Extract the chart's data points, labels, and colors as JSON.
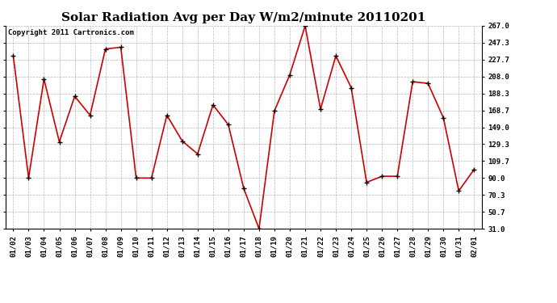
{
  "title": "Solar Radiation Avg per Day W/m2/minute 20110201",
  "copyright": "Copyright 2011 Cartronics.com",
  "x_labels": [
    "01/02",
    "01/03",
    "01/04",
    "01/05",
    "01/06",
    "01/07",
    "01/08",
    "01/09",
    "01/10",
    "01/11",
    "01/12",
    "01/13",
    "01/14",
    "01/15",
    "01/16",
    "01/17",
    "01/18",
    "01/19",
    "01/20",
    "01/21",
    "01/22",
    "01/23",
    "01/24",
    "01/25",
    "01/26",
    "01/27",
    "01/28",
    "01/29",
    "01/30",
    "01/31",
    "02/01"
  ],
  "y_values": [
    232,
    90,
    205,
    132,
    185,
    163,
    240,
    242,
    90,
    90,
    163,
    133,
    118,
    175,
    152,
    78,
    31,
    168,
    210,
    267,
    170,
    232,
    195,
    85,
    92,
    92,
    202,
    200,
    160,
    75,
    100
  ],
  "line_color": "#cc0000",
  "marker_color": "#000000",
  "bg_color": "#ffffff",
  "plot_bg_color": "#ffffff",
  "grid_color": "#999999",
  "y_ticks": [
    31.0,
    50.7,
    70.3,
    90.0,
    109.7,
    129.3,
    149.0,
    168.7,
    188.3,
    208.0,
    227.7,
    247.3,
    267.0
  ],
  "y_min": 31.0,
  "y_max": 267.0,
  "title_fontsize": 11,
  "copyright_fontsize": 6.5,
  "tick_fontsize": 6.5
}
